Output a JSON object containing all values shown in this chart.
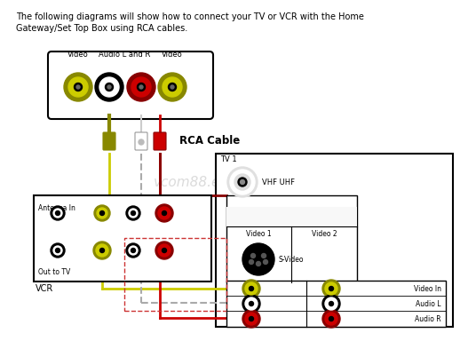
{
  "title_text": "The following diagrams will show how to connect your TV or VCR with the Home\nGateway/Set Top Box using RCA cables.",
  "watermark": "vcom88.en.alibaba.com",
  "rca_cable_label": "RCA Cable",
  "tv1_label": "TV 1",
  "vcr_label": "VCR",
  "vhf_label": "VHF UHF",
  "svideo_label": "S-Video",
  "video1_label": "Video 1",
  "video2_label": "Video 2",
  "antenna_label": "Antenna In",
  "outtotv_label": "Out to TV",
  "videoin_label": "Video In",
  "audiol_label": "Audio L",
  "audior_label": "Audio R",
  "connector_labels": [
    "Video",
    "Audio L and R",
    "Video"
  ],
  "bg_color": "#ffffff",
  "yellow_color": "#cccc00",
  "yellow_dark": "#999900",
  "red_color": "#cc0000",
  "dark_red_color": "#880000",
  "olive_color": "#888800",
  "black": "#000000",
  "gray": "#888888",
  "light_bg": "#f5f5f5",
  "wire_yellow": "#cccc00",
  "wire_white": "#aaaaaa",
  "wire_red": "#cc0000",
  "dashed_color": "#cc4444"
}
